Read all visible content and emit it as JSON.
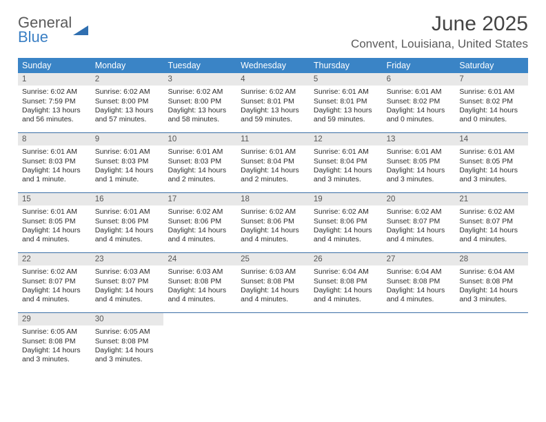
{
  "logo": {
    "word1": "General",
    "word2": "Blue"
  },
  "title": "June 2025",
  "location": "Convent, Louisiana, United States",
  "colors": {
    "header_bg": "#3a84c6",
    "header_text": "#ffffff",
    "daynum_bg": "#e8e8e8",
    "daynum_text": "#555555",
    "body_text": "#2b2b2b",
    "rule": "#3a6ea5",
    "logo_gray": "#5a5a5a",
    "logo_blue": "#3a7fc4"
  },
  "day_names": [
    "Sunday",
    "Monday",
    "Tuesday",
    "Wednesday",
    "Thursday",
    "Friday",
    "Saturday"
  ],
  "weeks": [
    [
      {
        "n": "1",
        "sr": "Sunrise: 6:02 AM",
        "ss": "Sunset: 7:59 PM",
        "dl": "Daylight: 13 hours and 56 minutes."
      },
      {
        "n": "2",
        "sr": "Sunrise: 6:02 AM",
        "ss": "Sunset: 8:00 PM",
        "dl": "Daylight: 13 hours and 57 minutes."
      },
      {
        "n": "3",
        "sr": "Sunrise: 6:02 AM",
        "ss": "Sunset: 8:00 PM",
        "dl": "Daylight: 13 hours and 58 minutes."
      },
      {
        "n": "4",
        "sr": "Sunrise: 6:02 AM",
        "ss": "Sunset: 8:01 PM",
        "dl": "Daylight: 13 hours and 59 minutes."
      },
      {
        "n": "5",
        "sr": "Sunrise: 6:01 AM",
        "ss": "Sunset: 8:01 PM",
        "dl": "Daylight: 13 hours and 59 minutes."
      },
      {
        "n": "6",
        "sr": "Sunrise: 6:01 AM",
        "ss": "Sunset: 8:02 PM",
        "dl": "Daylight: 14 hours and 0 minutes."
      },
      {
        "n": "7",
        "sr": "Sunrise: 6:01 AM",
        "ss": "Sunset: 8:02 PM",
        "dl": "Daylight: 14 hours and 0 minutes."
      }
    ],
    [
      {
        "n": "8",
        "sr": "Sunrise: 6:01 AM",
        "ss": "Sunset: 8:03 PM",
        "dl": "Daylight: 14 hours and 1 minute."
      },
      {
        "n": "9",
        "sr": "Sunrise: 6:01 AM",
        "ss": "Sunset: 8:03 PM",
        "dl": "Daylight: 14 hours and 1 minute."
      },
      {
        "n": "10",
        "sr": "Sunrise: 6:01 AM",
        "ss": "Sunset: 8:03 PM",
        "dl": "Daylight: 14 hours and 2 minutes."
      },
      {
        "n": "11",
        "sr": "Sunrise: 6:01 AM",
        "ss": "Sunset: 8:04 PM",
        "dl": "Daylight: 14 hours and 2 minutes."
      },
      {
        "n": "12",
        "sr": "Sunrise: 6:01 AM",
        "ss": "Sunset: 8:04 PM",
        "dl": "Daylight: 14 hours and 3 minutes."
      },
      {
        "n": "13",
        "sr": "Sunrise: 6:01 AM",
        "ss": "Sunset: 8:05 PM",
        "dl": "Daylight: 14 hours and 3 minutes."
      },
      {
        "n": "14",
        "sr": "Sunrise: 6:01 AM",
        "ss": "Sunset: 8:05 PM",
        "dl": "Daylight: 14 hours and 3 minutes."
      }
    ],
    [
      {
        "n": "15",
        "sr": "Sunrise: 6:01 AM",
        "ss": "Sunset: 8:05 PM",
        "dl": "Daylight: 14 hours and 4 minutes."
      },
      {
        "n": "16",
        "sr": "Sunrise: 6:01 AM",
        "ss": "Sunset: 8:06 PM",
        "dl": "Daylight: 14 hours and 4 minutes."
      },
      {
        "n": "17",
        "sr": "Sunrise: 6:02 AM",
        "ss": "Sunset: 8:06 PM",
        "dl": "Daylight: 14 hours and 4 minutes."
      },
      {
        "n": "18",
        "sr": "Sunrise: 6:02 AM",
        "ss": "Sunset: 8:06 PM",
        "dl": "Daylight: 14 hours and 4 minutes."
      },
      {
        "n": "19",
        "sr": "Sunrise: 6:02 AM",
        "ss": "Sunset: 8:06 PM",
        "dl": "Daylight: 14 hours and 4 minutes."
      },
      {
        "n": "20",
        "sr": "Sunrise: 6:02 AM",
        "ss": "Sunset: 8:07 PM",
        "dl": "Daylight: 14 hours and 4 minutes."
      },
      {
        "n": "21",
        "sr": "Sunrise: 6:02 AM",
        "ss": "Sunset: 8:07 PM",
        "dl": "Daylight: 14 hours and 4 minutes."
      }
    ],
    [
      {
        "n": "22",
        "sr": "Sunrise: 6:02 AM",
        "ss": "Sunset: 8:07 PM",
        "dl": "Daylight: 14 hours and 4 minutes."
      },
      {
        "n": "23",
        "sr": "Sunrise: 6:03 AM",
        "ss": "Sunset: 8:07 PM",
        "dl": "Daylight: 14 hours and 4 minutes."
      },
      {
        "n": "24",
        "sr": "Sunrise: 6:03 AM",
        "ss": "Sunset: 8:08 PM",
        "dl": "Daylight: 14 hours and 4 minutes."
      },
      {
        "n": "25",
        "sr": "Sunrise: 6:03 AM",
        "ss": "Sunset: 8:08 PM",
        "dl": "Daylight: 14 hours and 4 minutes."
      },
      {
        "n": "26",
        "sr": "Sunrise: 6:04 AM",
        "ss": "Sunset: 8:08 PM",
        "dl": "Daylight: 14 hours and 4 minutes."
      },
      {
        "n": "27",
        "sr": "Sunrise: 6:04 AM",
        "ss": "Sunset: 8:08 PM",
        "dl": "Daylight: 14 hours and 4 minutes."
      },
      {
        "n": "28",
        "sr": "Sunrise: 6:04 AM",
        "ss": "Sunset: 8:08 PM",
        "dl": "Daylight: 14 hours and 3 minutes."
      }
    ],
    [
      {
        "n": "29",
        "sr": "Sunrise: 6:05 AM",
        "ss": "Sunset: 8:08 PM",
        "dl": "Daylight: 14 hours and 3 minutes."
      },
      {
        "n": "30",
        "sr": "Sunrise: 6:05 AM",
        "ss": "Sunset: 8:08 PM",
        "dl": "Daylight: 14 hours and 3 minutes."
      },
      null,
      null,
      null,
      null,
      null
    ]
  ]
}
